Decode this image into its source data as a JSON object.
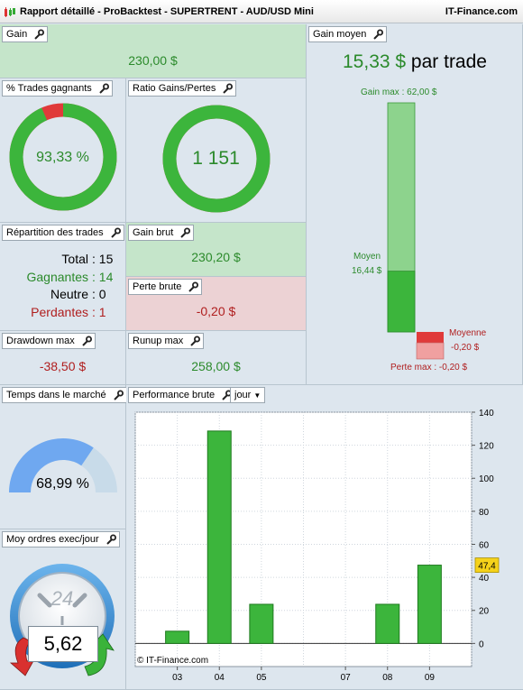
{
  "window": {
    "title": "Rapport détaillé - ProBacktest - SUPERTRENT - AUD/USD Mini",
    "brand": "IT-Finance.com"
  },
  "gain": {
    "label": "Gain",
    "value": "230,00 $"
  },
  "gain_moyen": {
    "label": "Gain moyen",
    "value": "15,33 $",
    "suffix": "par trade",
    "gain_max_label": "Gain max : 62,00 $",
    "moyen_label": "Moyen",
    "moyen_value": "16,44 $",
    "moyenne_label": "Moyenne",
    "moyenne_value": "-0,20 $",
    "perte_max_label": "Perte max : -0,20 $",
    "gain_max": 62.0,
    "gain_moyen": 16.44,
    "perte_max": -0.2,
    "perte_moyenne": -0.2
  },
  "trades_gagnants": {
    "label": "% Trades gagnants",
    "value": "93,33 %",
    "fraction": 0.9333
  },
  "ratio": {
    "label": "Ratio Gains/Pertes",
    "value": "1 151",
    "fraction": 0.999
  },
  "repartition": {
    "label": "Répartition des trades",
    "rows": [
      {
        "name": "Total",
        "count": "15"
      },
      {
        "name": "Gagnantes",
        "count": "14"
      },
      {
        "name": "Neutre",
        "count": "0"
      },
      {
        "name": "Perdantes",
        "count": "1"
      }
    ]
  },
  "gain_brut": {
    "label": "Gain brut",
    "value": "230,20 $"
  },
  "perte_brute": {
    "label": "Perte brute",
    "value": "-0,20 $"
  },
  "drawdown": {
    "label": "Drawdown max",
    "value": "-38,50 $"
  },
  "runup": {
    "label": "Runup max",
    "value": "258,00 $"
  },
  "temps": {
    "label": "Temps dans le marché",
    "value": "68,99 %",
    "fraction": 0.6899
  },
  "ordres": {
    "label": "Moy ordres exec/jour",
    "value": "5,62",
    "clock_label": "24"
  },
  "performance": {
    "label": "Performance brute",
    "period": "jour",
    "watermark": "© IT-Finance.com",
    "current_value_label": "47,4"
  },
  "colors": {
    "green": "#3cb53c",
    "light_green": "#8dd38d",
    "red": "#e03a3a",
    "light_red": "#f0a0a0",
    "blue": "#6fa8f0"
  },
  "chart_data": {
    "type": "bar",
    "categories": [
      "03",
      "04",
      "05",
      "07",
      "08",
      "09"
    ],
    "x": [
      3,
      4,
      5,
      7,
      8,
      9
    ],
    "values": [
      7.4,
      128.6,
      23.7,
      0,
      23.7,
      47.4
    ],
    "ylim": [
      -14,
      140
    ],
    "yticks": [
      "0",
      "20",
      "40",
      "60",
      "80",
      "100",
      "120",
      "140"
    ],
    "current_value": 47.4,
    "grid": true
  }
}
